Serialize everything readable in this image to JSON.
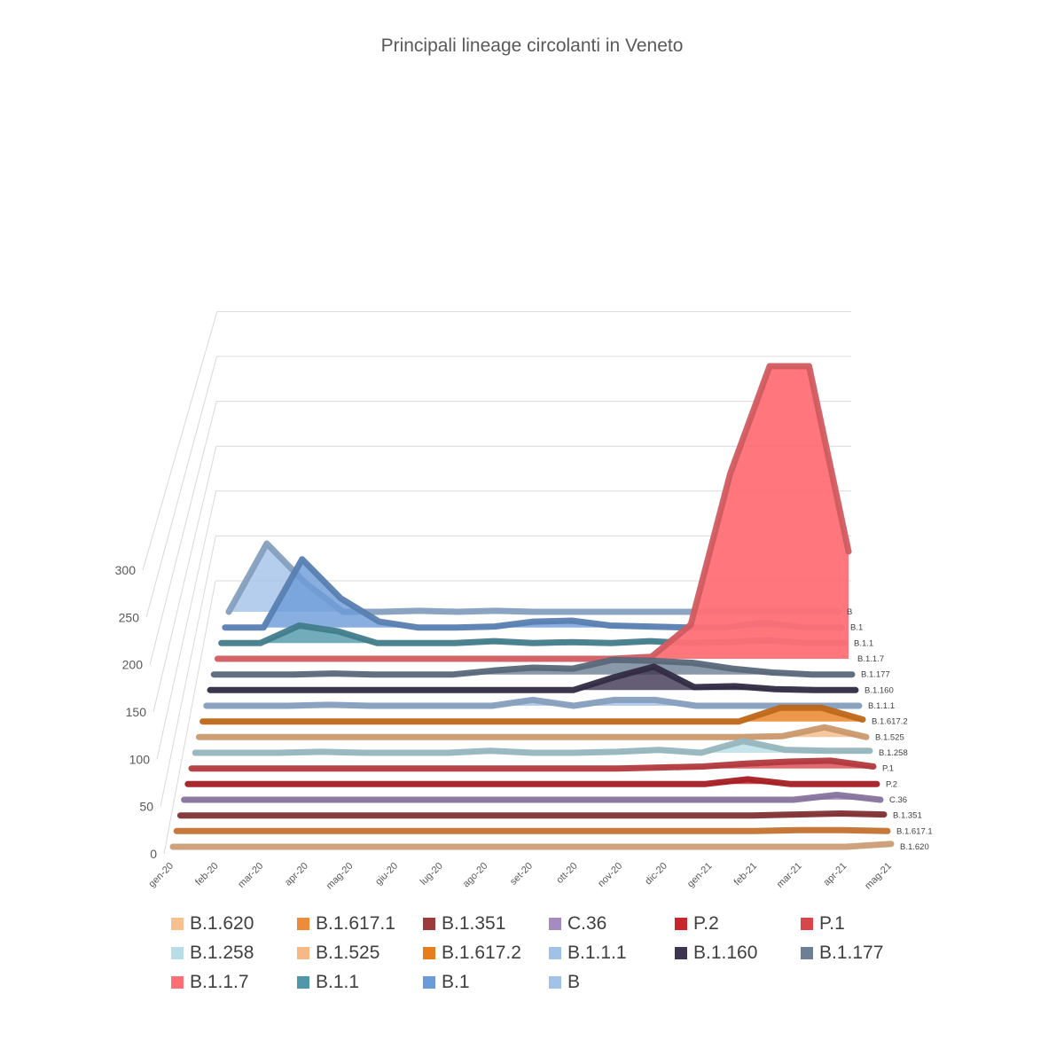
{
  "chart_data": {
    "type": "area",
    "title": "Principali lineage circolanti in Veneto",
    "categories": [
      "gen-20",
      "feb-20",
      "mar-20",
      "apr-20",
      "mag-20",
      "giu-20",
      "lug-20",
      "ago-20",
      "set-20",
      "ott-20",
      "nov-20",
      "dic-20",
      "gen-21",
      "feb-21",
      "mar-21",
      "apr-21",
      "mag-21"
    ],
    "yticks": [
      0,
      50,
      100,
      150,
      200,
      250,
      300
    ],
    "ylim": [
      0,
      300
    ],
    "grid": true,
    "legend_position": "bottom",
    "series": [
      {
        "name": "B.1.620",
        "color": "#f8c08f",
        "values": [
          0,
          0,
          0,
          0,
          0,
          0,
          0,
          0,
          0,
          0,
          0,
          0,
          0,
          0,
          0,
          0,
          3
        ]
      },
      {
        "name": "B.1.617.1",
        "color": "#ee8b3a",
        "values": [
          0,
          0,
          0,
          0,
          0,
          0,
          0,
          0,
          0,
          0,
          0,
          0,
          0,
          0,
          1,
          1,
          0
        ]
      },
      {
        "name": "B.1.351",
        "color": "#9c3a3c",
        "values": [
          0,
          0,
          0,
          0,
          0,
          0,
          0,
          0,
          0,
          0,
          0,
          0,
          0,
          0,
          1,
          2,
          1
        ]
      },
      {
        "name": "C.36",
        "color": "#a48cc0",
        "values": [
          0,
          0,
          0,
          0,
          0,
          0,
          0,
          0,
          0,
          0,
          0,
          0,
          0,
          0,
          0,
          5,
          0
        ]
      },
      {
        "name": "P.2",
        "color": "#c8252c",
        "values": [
          0,
          0,
          0,
          0,
          0,
          0,
          0,
          0,
          0,
          0,
          0,
          0,
          0,
          5,
          0,
          0,
          0
        ]
      },
      {
        "name": "P.1",
        "color": "#d8464b",
        "values": [
          0,
          0,
          0,
          0,
          0,
          0,
          0,
          0,
          0,
          0,
          0,
          1,
          2,
          5,
          7,
          8,
          2
        ]
      },
      {
        "name": "B.1.258",
        "color": "#b7dde6",
        "values": [
          0,
          0,
          0,
          1,
          0,
          0,
          0,
          2,
          0,
          0,
          1,
          3,
          0,
          12,
          3,
          2,
          2
        ]
      },
      {
        "name": "B.1.525",
        "color": "#f6b985",
        "values": [
          0,
          0,
          0,
          0,
          0,
          0,
          0,
          0,
          0,
          0,
          0,
          0,
          0,
          0,
          1,
          10,
          0
        ]
      },
      {
        "name": "B.1.617.2",
        "color": "#e87d1e",
        "values": [
          0,
          0,
          0,
          0,
          0,
          0,
          0,
          0,
          0,
          0,
          0,
          0,
          0,
          0,
          14,
          14,
          2
        ]
      },
      {
        "name": "B.1.1.1",
        "color": "#a2c1e6",
        "values": [
          0,
          0,
          0,
          1,
          0,
          0,
          0,
          0,
          6,
          0,
          6,
          6,
          0,
          0,
          0,
          0,
          0
        ]
      },
      {
        "name": "B.1.160",
        "color": "#3d3552",
        "values": [
          0,
          0,
          0,
          0,
          0,
          0,
          0,
          0,
          0,
          0,
          13,
          24,
          3,
          4,
          1,
          0,
          0
        ]
      },
      {
        "name": "B.1.177",
        "color": "#6c7f95",
        "values": [
          0,
          0,
          0,
          1,
          0,
          0,
          0,
          4,
          7,
          6,
          15,
          14,
          12,
          6,
          2,
          0,
          0
        ]
      },
      {
        "name": "B.1.1.7",
        "color": "#ff6f75",
        "values": [
          0,
          0,
          0,
          0,
          0,
          0,
          0,
          0,
          0,
          0,
          0,
          2,
          35,
          190,
          300,
          300,
          110
        ]
      },
      {
        "name": "B.1.1",
        "color": "#4f97a9",
        "values": [
          0,
          0,
          18,
          12,
          0,
          0,
          0,
          2,
          0,
          1,
          0,
          2,
          0,
          1,
          3,
          0,
          0
        ]
      },
      {
        "name": "B.1",
        "color": "#6b9bd8",
        "values": [
          0,
          0,
          70,
          30,
          6,
          0,
          0,
          1,
          6,
          7,
          2,
          1,
          0,
          0,
          5,
          0,
          0
        ]
      },
      {
        "name": "B",
        "color": "#a2c2e8",
        "values": [
          0,
          70,
          30,
          0,
          0,
          1,
          0,
          1,
          0,
          0,
          0,
          0,
          0,
          0,
          0,
          0,
          0
        ]
      }
    ]
  }
}
